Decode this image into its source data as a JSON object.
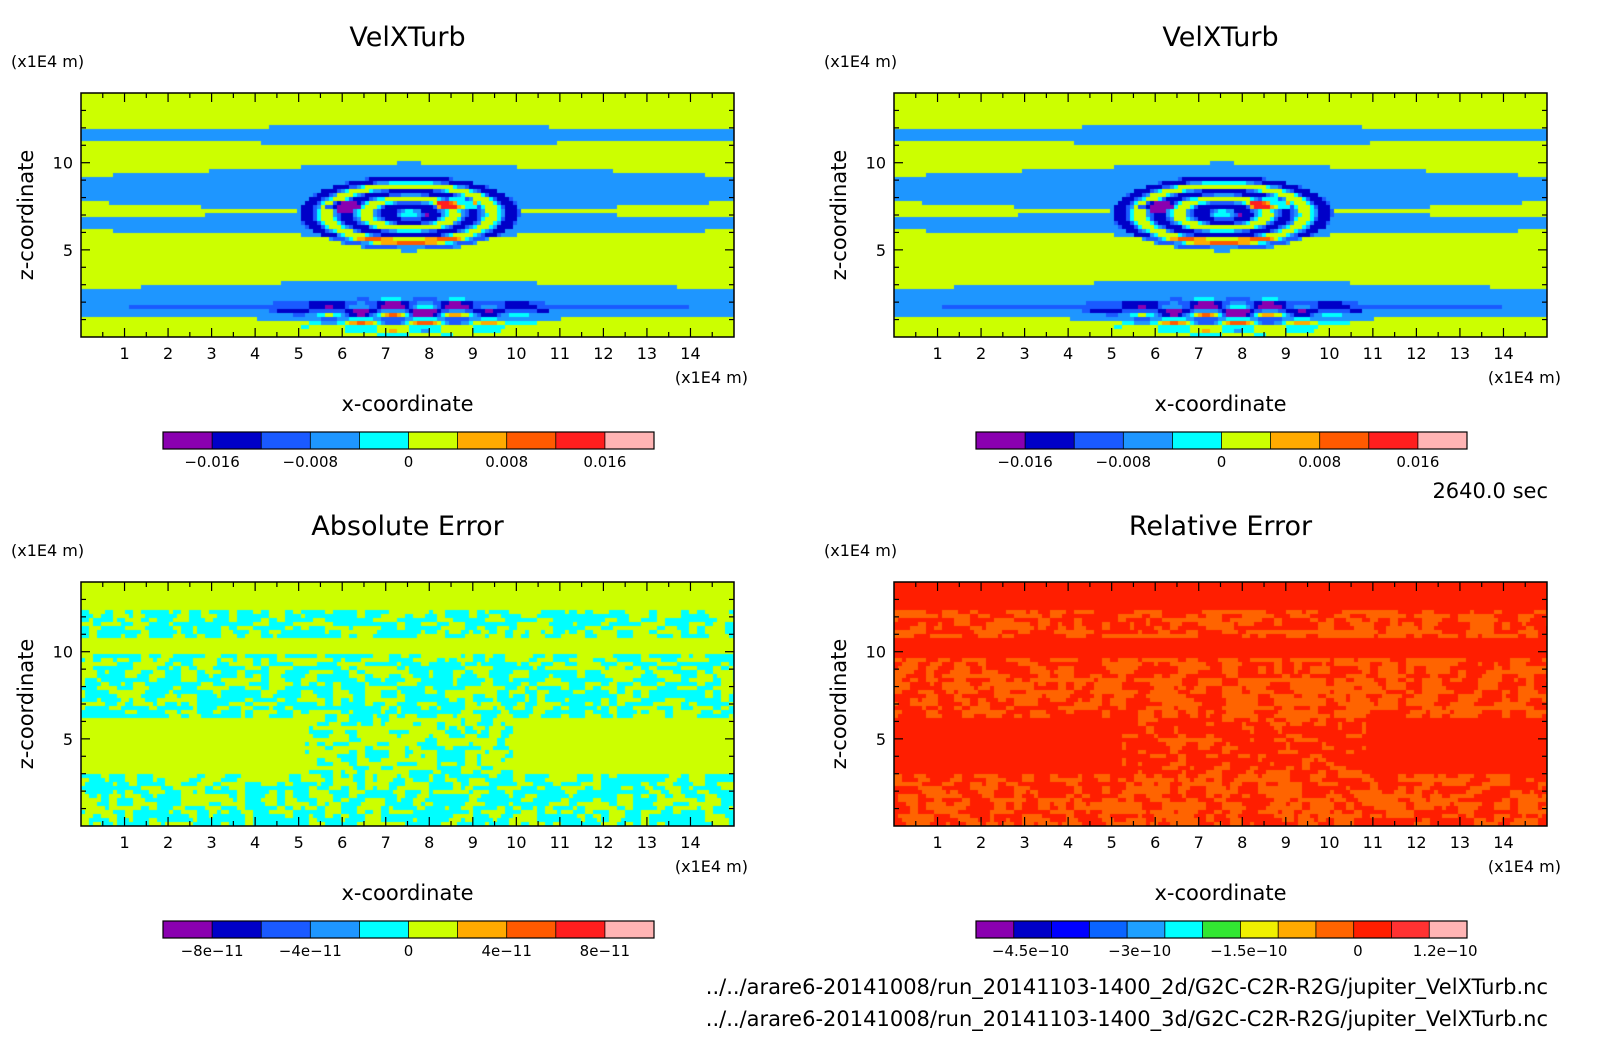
{
  "figure": {
    "time_label": "2640.0 sec",
    "source_files": [
      "../../arare6-20141008/run_20141103-1400_2d/G2C-C2R-R2G/jupiter_VelXTurb.nc",
      "../../arare6-20141008/run_20141103-1400_3d/G2C-C2R-R2G/jupiter_VelXTurb.nc"
    ]
  },
  "chart_data": [
    {
      "type": "heatmap",
      "title": "VelXTurb",
      "xlabel": "x-coordinate",
      "ylabel": "z-coordinate",
      "x_unit": "(x1E4 m)",
      "y_unit": "(x1E4 m)",
      "xlim": [
        0,
        15
      ],
      "ylim": [
        0,
        14
      ],
      "xticks": [
        "1",
        "2",
        "3",
        "4",
        "5",
        "6",
        "7",
        "8",
        "9",
        "10",
        "11",
        "12",
        "13",
        "14"
      ],
      "yticks": [
        "5",
        "10"
      ],
      "colorbar": {
        "colors": [
          "#8a00b0",
          "#0000c8",
          "#1a5aff",
          "#1e96ff",
          "#00ffff",
          "#ccff00",
          "#ffaa00",
          "#ff5a00",
          "#ff1e1e",
          "#ffb4b4"
        ],
        "range": [
          -0.02,
          0.02
        ],
        "tick_labels": [
          "-0.016",
          "-0.008",
          "0",
          "0.008",
          "0.016"
        ],
        "tick_values": [
          -0.016,
          -0.008,
          0,
          0.008,
          0.016
        ]
      }
    },
    {
      "type": "heatmap",
      "title": "VelXTurb",
      "xlabel": "x-coordinate",
      "ylabel": "z-coordinate",
      "x_unit": "(x1E4 m)",
      "y_unit": "(x1E4 m)",
      "xlim": [
        0,
        15
      ],
      "ylim": [
        0,
        14
      ],
      "xticks": [
        "1",
        "2",
        "3",
        "4",
        "5",
        "6",
        "7",
        "8",
        "9",
        "10",
        "11",
        "12",
        "13",
        "14"
      ],
      "yticks": [
        "5",
        "10"
      ],
      "colorbar": {
        "colors": [
          "#8a00b0",
          "#0000c8",
          "#1a5aff",
          "#1e96ff",
          "#00ffff",
          "#ccff00",
          "#ffaa00",
          "#ff5a00",
          "#ff1e1e",
          "#ffb4b4"
        ],
        "range": [
          -0.02,
          0.02
        ],
        "tick_labels": [
          "-0.016",
          "-0.008",
          "0",
          "0.008",
          "0.016"
        ],
        "tick_values": [
          -0.016,
          -0.008,
          0,
          0.008,
          0.016
        ]
      }
    },
    {
      "type": "heatmap",
      "title": "Absolute Error",
      "xlabel": "x-coordinate",
      "ylabel": "z-coordinate",
      "x_unit": "(x1E4 m)",
      "y_unit": "(x1E4 m)",
      "xlim": [
        0,
        15
      ],
      "ylim": [
        0,
        14
      ],
      "xticks": [
        "1",
        "2",
        "3",
        "4",
        "5",
        "6",
        "7",
        "8",
        "9",
        "10",
        "11",
        "12",
        "13",
        "14"
      ],
      "yticks": [
        "5",
        "10"
      ],
      "colorbar": {
        "colors": [
          "#8a00b0",
          "#0000c8",
          "#1a5aff",
          "#1e96ff",
          "#00ffff",
          "#ccff00",
          "#ffaa00",
          "#ff5a00",
          "#ff1e1e",
          "#ffb4b4"
        ],
        "range": [
          -1e-10,
          1e-10
        ],
        "tick_labels": [
          "-8e-11",
          "-4e-11",
          "0",
          "4e-11",
          "8e-11"
        ],
        "tick_values": [
          -8e-11,
          -4e-11,
          0,
          4e-11,
          8e-11
        ]
      }
    },
    {
      "type": "heatmap",
      "title": "Relative Error",
      "xlabel": "x-coordinate",
      "ylabel": "z-coordinate",
      "x_unit": "(x1E4 m)",
      "y_unit": "(x1E4 m)",
      "xlim": [
        0,
        15
      ],
      "ylim": [
        0,
        14
      ],
      "xticks": [
        "1",
        "2",
        "3",
        "4",
        "5",
        "6",
        "7",
        "8",
        "9",
        "10",
        "11",
        "12",
        "13",
        "14"
      ],
      "yticks": [
        "5",
        "10"
      ],
      "colorbar": {
        "colors": [
          "#8a00b0",
          "#0000c8",
          "#0000ff",
          "#0a64ff",
          "#1ea0ff",
          "#00ffff",
          "#32e632",
          "#f0f000",
          "#ffaa00",
          "#ff6400",
          "#ff1e00",
          "#ff3232",
          "#ffb4b4"
        ],
        "range": [
          -5.25e-10,
          1.5e-10
        ],
        "tick_labels": [
          "-4.5e-10",
          "-3e-10",
          "-1.5e-10",
          "0",
          "1.2e-10"
        ],
        "tick_values": [
          -4.5e-10,
          -3e-10,
          -1.5e-10,
          0,
          1.2e-10
        ]
      }
    }
  ]
}
